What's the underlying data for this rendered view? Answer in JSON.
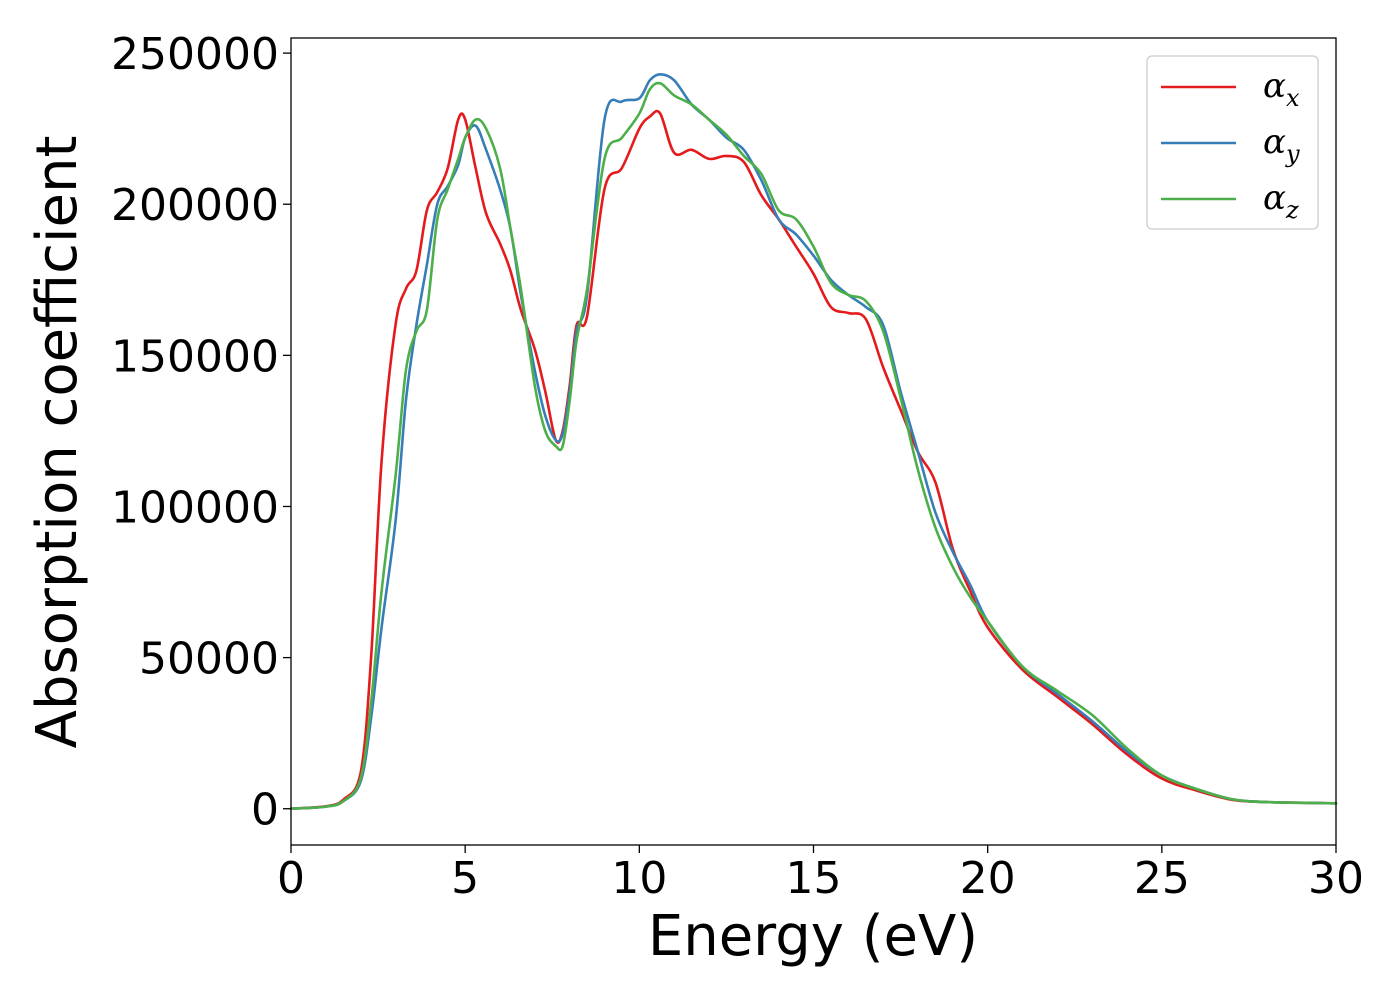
{
  "chart_data": {
    "type": "line",
    "xlabel": "Energy (eV)",
    "ylabel": "Absorption coefficient",
    "xlim": [
      0,
      30
    ],
    "ylim": [
      -12000,
      255000
    ],
    "x_ticks": [
      0,
      5,
      10,
      15,
      20,
      25,
      30
    ],
    "x_tick_labels": [
      "0",
      "5",
      "10",
      "15",
      "20",
      "25",
      "30"
    ],
    "y_ticks": [
      0,
      50000,
      100000,
      150000,
      200000,
      250000
    ],
    "y_tick_labels": [
      "0",
      "50000",
      "100000",
      "150000",
      "200000",
      "250000"
    ],
    "grid": false,
    "legend_position": "top-right",
    "series": [
      {
        "name": "α_x",
        "label_symbol": "α",
        "label_sub": "x",
        "color": "#e41a1c",
        "x": [
          0,
          1,
          1.5,
          2,
          2.3,
          2.6,
          3,
          3.3,
          3.6,
          3.9,
          4.2,
          4.5,
          4.8,
          5,
          5.3,
          5.6,
          6,
          6.3,
          6.6,
          7,
          7.3,
          7.6,
          7.8,
          8,
          8.2,
          8.5,
          9,
          9.5,
          10,
          10.3,
          10.6,
          11,
          11.5,
          12,
          12.5,
          13,
          13.5,
          14,
          14.5,
          15,
          15.5,
          16,
          16.5,
          17,
          17.5,
          18,
          18.5,
          19,
          19.5,
          20,
          21,
          22,
          23,
          24,
          25,
          26,
          27,
          28,
          30
        ],
        "y": [
          0,
          800,
          3000,
          12000,
          50000,
          115000,
          160000,
          172000,
          178000,
          198000,
          204000,
          212000,
          228000,
          228000,
          212000,
          197000,
          187000,
          178000,
          165000,
          152000,
          138000,
          122000,
          125000,
          140000,
          160000,
          163000,
          205000,
          212000,
          225000,
          229000,
          230000,
          217000,
          218000,
          215000,
          216000,
          214000,
          203000,
          195000,
          186000,
          177000,
          166000,
          164000,
          162000,
          146000,
          132000,
          118000,
          108000,
          86000,
          72000,
          60000,
          46000,
          37000,
          28000,
          18000,
          10000,
          6000,
          3000,
          2200,
          1800
        ]
      },
      {
        "name": "α_y",
        "label_symbol": "α",
        "label_sub": "y",
        "color": "#377eb8",
        "x": [
          0,
          1,
          1.5,
          2,
          2.3,
          2.6,
          3,
          3.3,
          3.6,
          3.9,
          4.2,
          4.5,
          4.8,
          5,
          5.3,
          5.6,
          6,
          6.3,
          6.6,
          7,
          7.3,
          7.6,
          7.8,
          8,
          8.2,
          8.5,
          9,
          9.5,
          10,
          10.3,
          10.6,
          11,
          11.5,
          12,
          12.5,
          13,
          13.5,
          14,
          14.5,
          15,
          15.5,
          16,
          16.5,
          17,
          17.5,
          18,
          18.5,
          19,
          19.5,
          20,
          21,
          22,
          23,
          24,
          25,
          26,
          27,
          28,
          30
        ],
        "y": [
          0,
          700,
          2500,
          9000,
          30000,
          60000,
          95000,
          135000,
          160000,
          180000,
          200000,
          206000,
          213000,
          222000,
          226000,
          218000,
          205000,
          192000,
          170000,
          145000,
          130000,
          122000,
          124000,
          138000,
          158000,
          170000,
          228000,
          234000,
          235000,
          241000,
          243000,
          241000,
          233000,
          228000,
          222000,
          218000,
          208000,
          195000,
          190000,
          183000,
          175000,
          170000,
          166000,
          160000,
          138000,
          118000,
          98000,
          85000,
          74000,
          62000,
          47000,
          38000,
          29000,
          19000,
          11000,
          6500,
          3200,
          2200,
          1800
        ]
      },
      {
        "name": "α_z",
        "label_symbol": "α",
        "label_sub": "z",
        "color": "#4daf4a",
        "x": [
          0,
          1,
          1.5,
          2,
          2.3,
          2.6,
          3,
          3.3,
          3.6,
          3.9,
          4.2,
          4.5,
          4.8,
          5,
          5.3,
          5.6,
          6,
          6.3,
          6.6,
          7,
          7.3,
          7.6,
          7.8,
          8,
          8.2,
          8.5,
          9,
          9.5,
          10,
          10.3,
          10.6,
          11,
          11.5,
          12,
          12.5,
          13,
          13.5,
          14,
          14.5,
          15,
          15.5,
          16,
          16.5,
          17,
          17.5,
          18,
          18.5,
          19,
          19.5,
          20,
          21,
          22,
          23,
          24,
          25,
          26,
          27,
          28,
          30
        ],
        "y": [
          0,
          700,
          2500,
          10000,
          35000,
          72000,
          110000,
          145000,
          158000,
          165000,
          195000,
          205000,
          215000,
          222000,
          228000,
          225000,
          212000,
          192000,
          172000,
          140000,
          125000,
          120000,
          120000,
          135000,
          155000,
          172000,
          215000,
          222000,
          230000,
          238000,
          240000,
          236000,
          233000,
          228000,
          223000,
          216000,
          210000,
          198000,
          195000,
          186000,
          174000,
          170000,
          168000,
          158000,
          136000,
          112000,
          93000,
          80000,
          70000,
          62000,
          47000,
          39000,
          31000,
          20000,
          11000,
          6500,
          3200,
          2200,
          1800
        ]
      }
    ]
  }
}
